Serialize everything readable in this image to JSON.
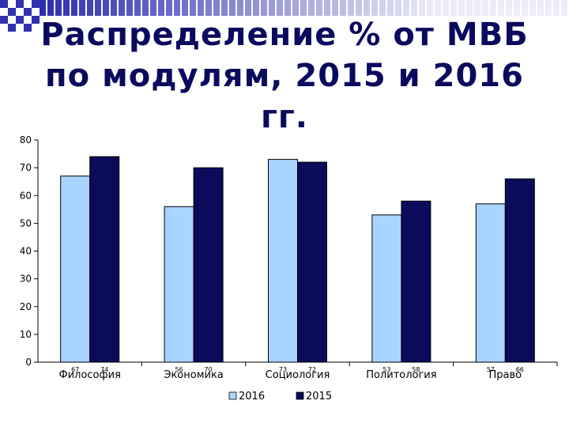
{
  "page": {
    "title": "Распределение % от МВБ по модулям, 2015 и 2016 гг."
  },
  "colors": {
    "title": "#0a0a5e",
    "deco": "#1a1aa8"
  },
  "chart_data": {
    "type": "bar",
    "title": "Распределение % от МВБ по модулям, 2015 и 2016 гг.",
    "categories": [
      "Философия",
      "Экономика",
      "Социология",
      "Политология",
      "Право"
    ],
    "series": [
      {
        "name": "2016",
        "values": [
          67,
          56,
          73,
          53,
          57
        ],
        "color": "#a9d4ff"
      },
      {
        "name": "2015",
        "values": [
          74,
          70,
          72,
          58,
          66
        ],
        "color": "#0b0b5c"
      }
    ],
    "ylim": [
      0,
      80
    ],
    "yticks": [
      0,
      10,
      20,
      30,
      40,
      50,
      60,
      70,
      80
    ],
    "grid": false,
    "legend": "bottom",
    "data_labels": true
  }
}
